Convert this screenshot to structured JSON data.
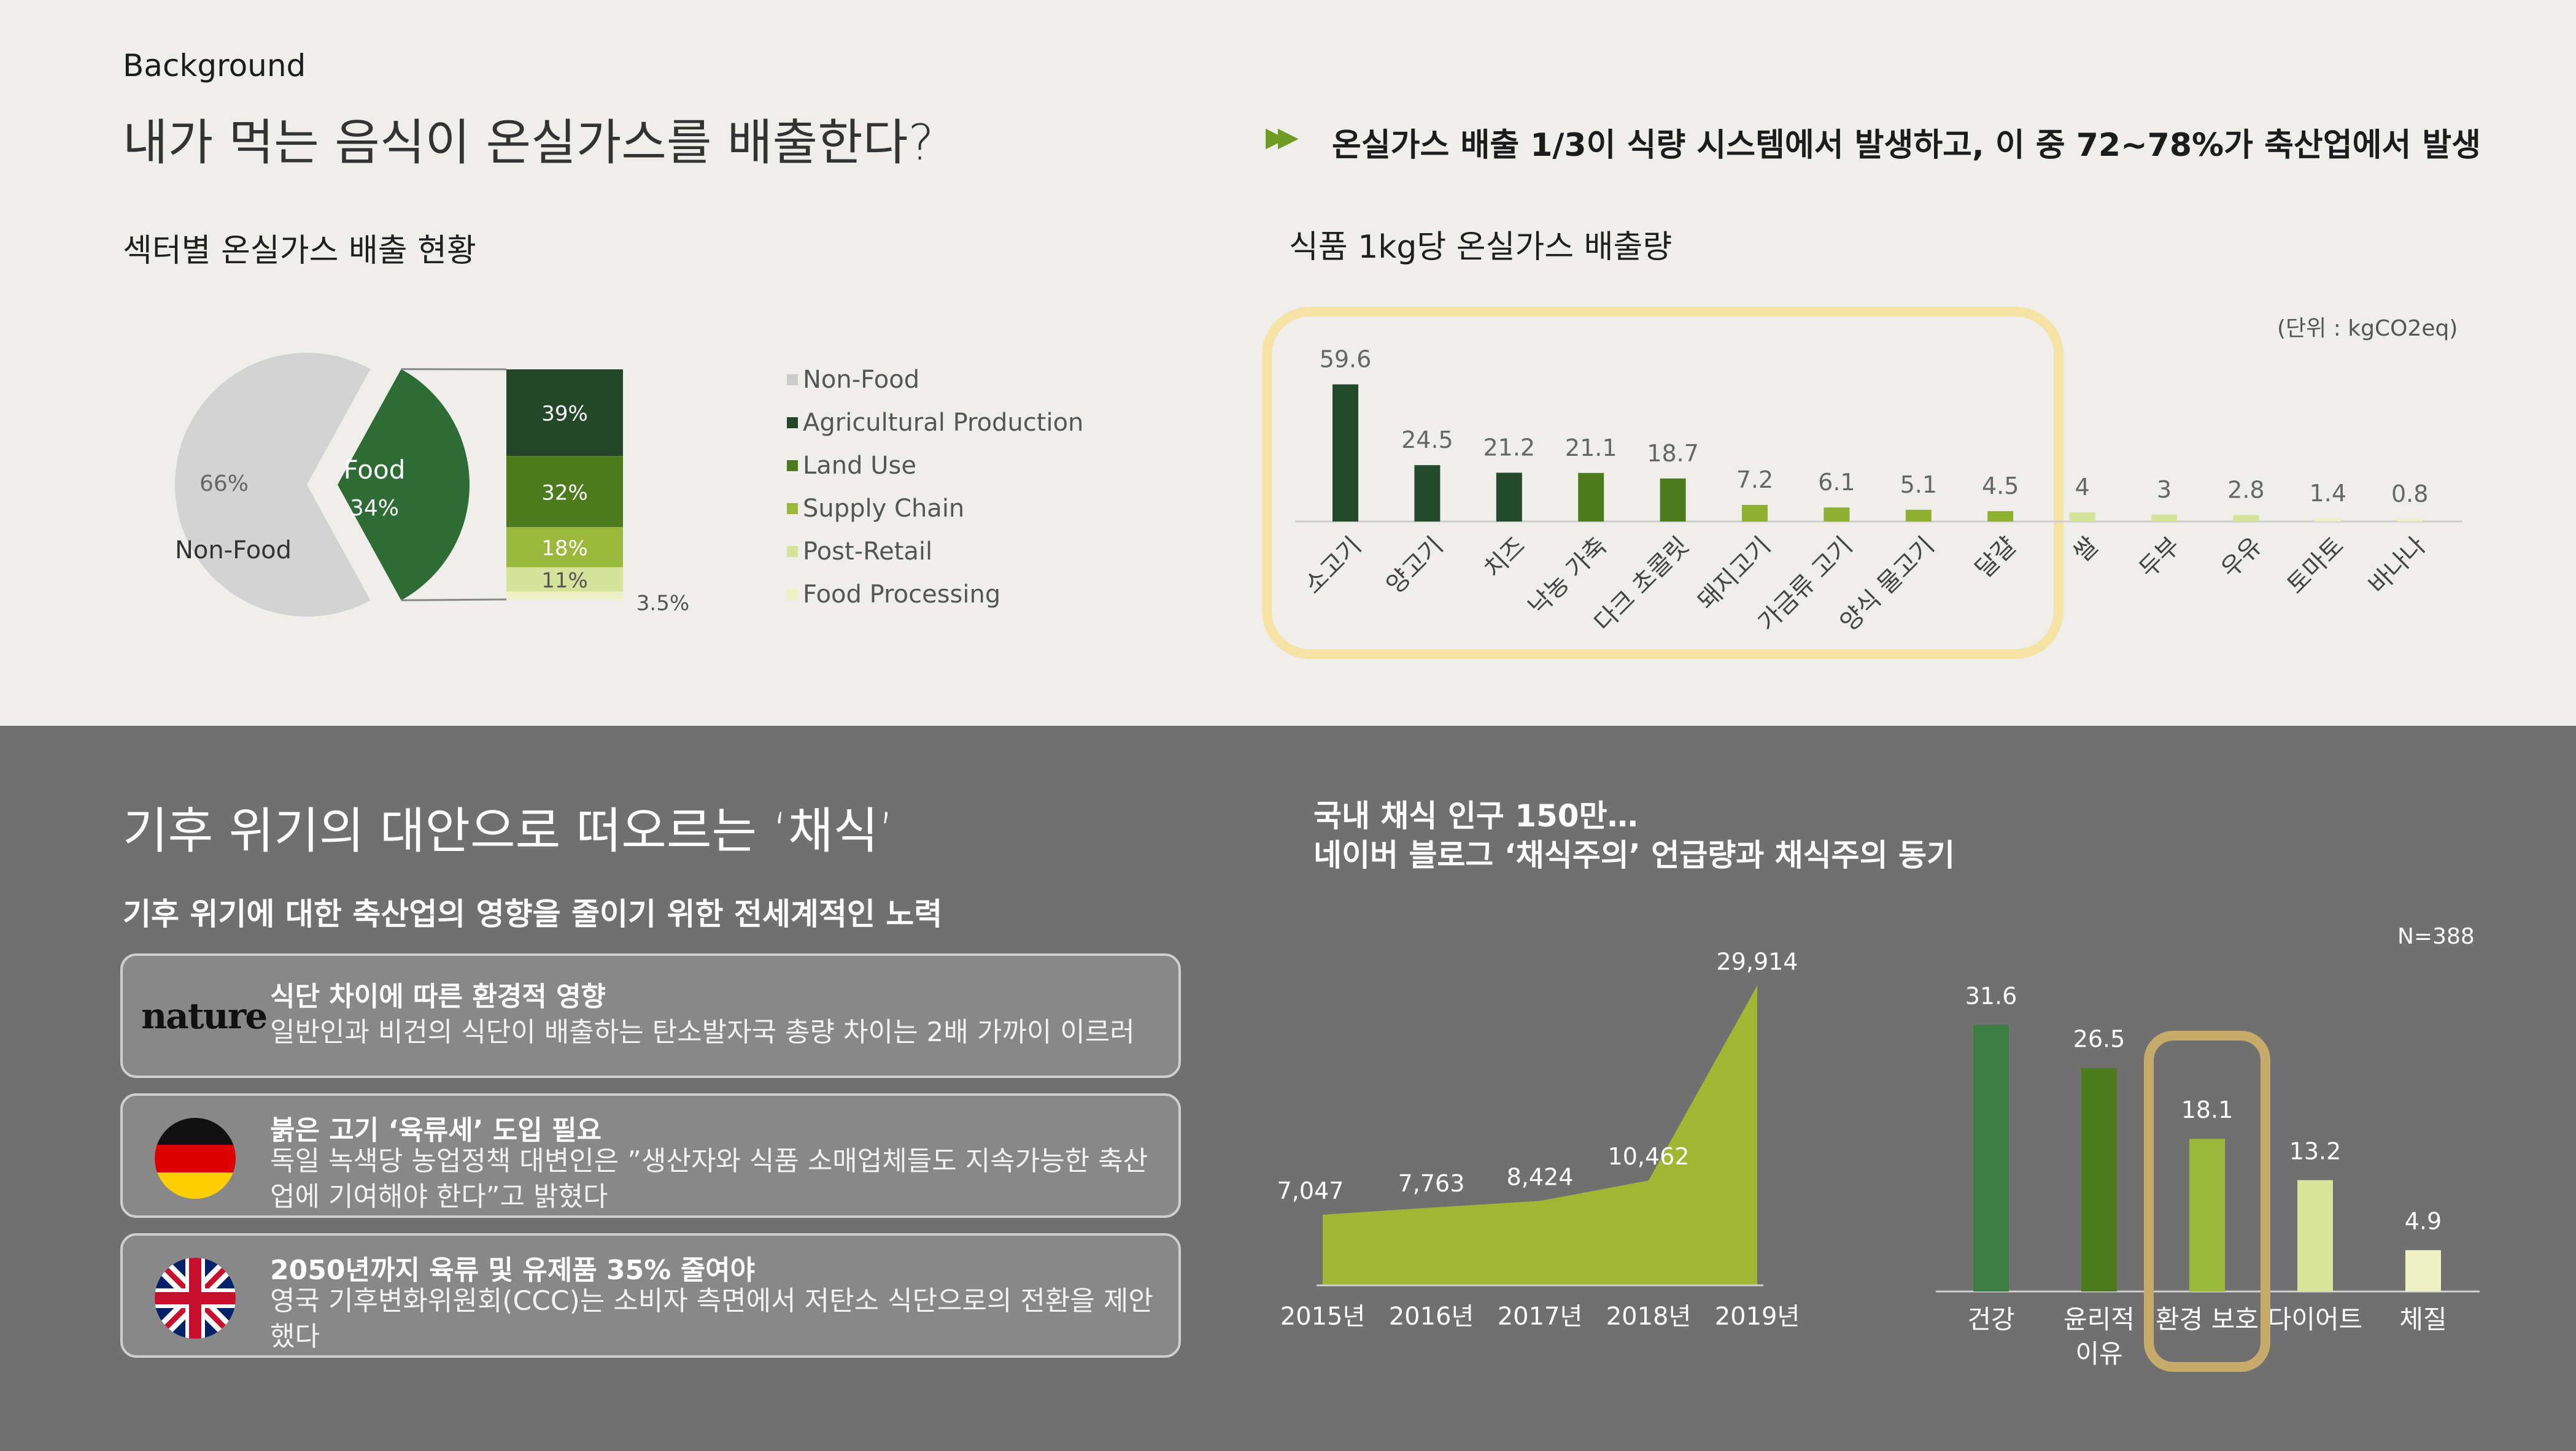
{
  "top": {
    "section_label": "Background",
    "title": "내가 먹는 음식이 온실가스를 배출한다?",
    "headline": "온실가스 배출 1/3이 식량 시스템에서 발생하고, 이 중 72~78%가 축산업에서 발생",
    "pie_subtitle": "섹터별 온실가스 배출 현황",
    "bar_subtitle": "식품 1kg당 온실가스 배출량",
    "unit_label": "(단위 : kgCO2eq)"
  },
  "bottom": {
    "title": "기후 위기의 대안으로 떠오르는 ‘채식’",
    "subtitle": "기후 위기에 대한 축산업의 영향을 줄이기 위한 전세계적인 노력",
    "chart_heading_line1": "국내 채식 인구 150만…",
    "chart_heading_line2": "네이버 블로그 ‘채식주의’ 언급량과 채식주의 동기",
    "sample_size": "N=388",
    "cards": [
      {
        "logo": "nature",
        "title": "식단 차이에 따른 환경적 영향",
        "body": "일반인과 비건의 식단이 배출하는 탄소발자국 총량 차이는 2배 가까이 이르러"
      },
      {
        "logo": "germany-flag",
        "title": "붉은 고기 ‘육류세’ 도입 필요",
        "body": "독일 녹색당 농업정책 대변인은 ”생산자와 식품 소매업체들도 지속가능한 축산업에 기여해야 한다”고 밝혔다"
      },
      {
        "logo": "uk-flag",
        "title": "2050년까지 육류 및 유제품 35% 줄여야",
        "body": "영국 기후변화위원회(CCC)는 소비자 측면에서 저탄소 식단으로의 전환을 제안했다"
      }
    ]
  },
  "chart_data": [
    {
      "type": "pie",
      "slices": [
        {
          "label": "Non-Food",
          "value": 66,
          "display": "66%",
          "color": "#d3d3d3"
        },
        {
          "label": "Food",
          "value": 34,
          "display": "34%",
          "color": "#2f6b34"
        }
      ],
      "breakdown_of": "Food",
      "breakdown": [
        {
          "label": "Agricultural Production",
          "value": 39,
          "display": "39%",
          "color": "#24472a"
        },
        {
          "label": "Land Use",
          "value": 32,
          "display": "32%",
          "color": "#4e7a1e"
        },
        {
          "label": "Supply Chain",
          "value": 18,
          "display": "18%",
          "color": "#9ab83a"
        },
        {
          "label": "Post-Retail",
          "value": 11,
          "display": "11%",
          "color": "#d6e39b"
        },
        {
          "label": "Food Processing",
          "value": 3.5,
          "display": "3.5%",
          "color": "#eef1c4"
        }
      ],
      "legend": [
        {
          "label": "Non-Food",
          "color": "#cccccc"
        },
        {
          "label": "Agricultural Production",
          "color": "#24472a"
        },
        {
          "label": "Land Use",
          "color": "#4e7a1e"
        },
        {
          "label": "Supply Chain",
          "color": "#9ab83a"
        },
        {
          "label": "Post-Retail",
          "color": "#d6e39b"
        },
        {
          "label": "Food Processing",
          "color": "#eef1c4"
        }
      ],
      "legend_placement": "right"
    },
    {
      "type": "bar",
      "categories": [
        "소고기",
        "양고기",
        "치즈",
        "낙농 가축",
        "다크 초콜릿",
        "돼지고기",
        "가금류 고기",
        "양식 물고기",
        "달걀",
        "쌀",
        "두부",
        "우유",
        "토마토",
        "바나나"
      ],
      "values": [
        59.6,
        24.5,
        21.2,
        21.1,
        18.7,
        7.2,
        6.1,
        5.1,
        4.5,
        4,
        3,
        2.8,
        1.4,
        0.8
      ],
      "value_labels": [
        "59.6",
        "24.5",
        "21.2",
        "21.1",
        "18.7",
        "7.2",
        "6.1",
        "5.1",
        "4.5",
        "4",
        "3",
        "2.8",
        "1.4",
        "0.8"
      ],
      "colors": [
        "#234a2b",
        "#234a2b",
        "#234a2b",
        "#4e7a1e",
        "#4e7a1e",
        "#8fb030",
        "#8fb030",
        "#8fb030",
        "#8fb030",
        "#d6e39b",
        "#d6e39b",
        "#d6e39b",
        "#eef1c4",
        "#eef1c4"
      ],
      "unit": "kgCO2eq",
      "ylim": [
        0,
        60
      ],
      "highlighted": [
        "소고기",
        "양고기",
        "치즈",
        "낙농 가축",
        "다크 초콜릿",
        "돼지고기",
        "가금류 고기",
        "양식 물고기",
        "달걀"
      ]
    },
    {
      "type": "area",
      "x": [
        "2015년",
        "2016년",
        "2017년",
        "2018년",
        "2019년"
      ],
      "values": [
        7047,
        7763,
        8424,
        10462,
        29914
      ],
      "value_labels": [
        "7,047",
        "7,763",
        "8,424",
        "10,462",
        "29,914"
      ],
      "color": "#a1b733",
      "ylim": [
        0,
        30000
      ]
    },
    {
      "type": "bar",
      "categories": [
        "건강",
        "윤리적 이유",
        "환경 보호",
        "다이어트",
        "체질"
      ],
      "category_lines": [
        [
          "건강"
        ],
        [
          "윤리적",
          "이유"
        ],
        [
          "환경 보호"
        ],
        [
          "다이어트"
        ],
        [
          "체질"
        ]
      ],
      "values": [
        31.6,
        26.5,
        18.1,
        13.2,
        4.9
      ],
      "value_labels": [
        "31.6",
        "26.5",
        "18.1",
        "13.2",
        "4.9"
      ],
      "colors": [
        "#3b7d42",
        "#4e7a1e",
        "#9ab83a",
        "#d8e49a",
        "#eef1c4"
      ],
      "ylim": [
        0,
        32
      ],
      "highlighted": [
        "환경 보호"
      ]
    }
  ]
}
